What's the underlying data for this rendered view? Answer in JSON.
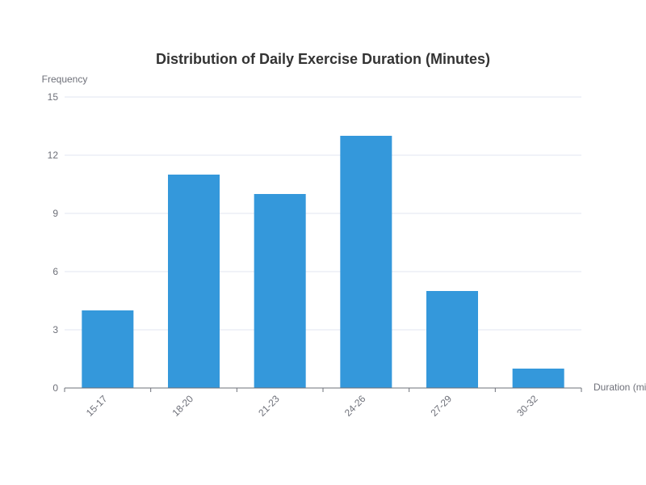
{
  "chart_data": {
    "type": "bar",
    "title": "Distribution of Daily Exercise Duration (Minutes)",
    "xlabel": "Duration (minutes)",
    "ylabel": "Frequency",
    "categories": [
      "15-17",
      "18-20",
      "21-23",
      "24-26",
      "27-29",
      "30-32"
    ],
    "values": [
      4,
      11,
      10,
      13,
      5,
      1
    ],
    "ylim": [
      0,
      15
    ],
    "yticks": [
      0,
      3,
      6,
      9,
      12,
      15
    ],
    "grid": true,
    "bar_color": "#3498db"
  }
}
